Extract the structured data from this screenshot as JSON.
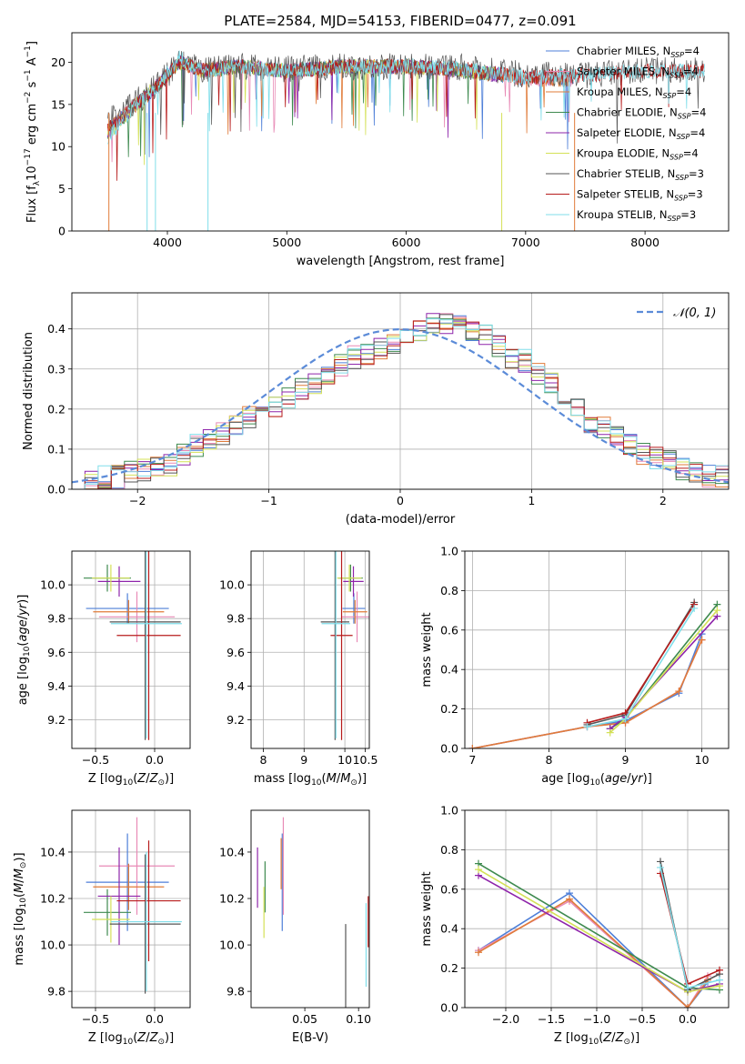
{
  "figure": {
    "title": "PLATE=2584, MJD=54153, FIBERID=0477, z=0.091"
  },
  "colors": {
    "Chabrier MILES": "#4e7fd8",
    "Salpeter MILES": "#e88ab6",
    "Kroupa MILES": "#e07b39",
    "Chabrier ELODIE": "#3e8a4f",
    "Salpeter ELODIE": "#8e24aa",
    "Kroupa ELODIE": "#d4e157",
    "Chabrier STELIB": "#555555",
    "Salpeter STELIB": "#b71c1c",
    "Kroupa STELIB": "#80deea",
    "gaussian": "#5b8bd8",
    "grid": "#b0b0b0"
  },
  "chart_data": [
    {
      "id": "spectrum",
      "type": "line",
      "title": "PLATE=2584, MJD=54153, FIBERID=0477, z=0.091",
      "xlabel": "wavelength [Angstrom, rest frame]",
      "ylabel": "Flux [f_λ10^−17 erg cm^−2 s^−1 A^−1]",
      "xlim": [
        3200,
        8700
      ],
      "ylim": [
        0,
        23.5
      ],
      "xticks": [
        4000,
        5000,
        6000,
        7000,
        8000
      ],
      "yticks": [
        0,
        5,
        10,
        15,
        20
      ],
      "grid": false,
      "legend": "top-right",
      "series": [
        {
          "name": "Chabrier MILES, N_SSP=4",
          "x": [
            3500,
            3700,
            3900,
            4100,
            4300,
            4600,
            5000,
            5500,
            6000,
            6500,
            7000,
            7400
          ],
          "y": [
            12,
            14.5,
            17,
            20,
            19,
            19.5,
            19,
            19.5,
            19.5,
            19,
            18,
            18
          ]
        },
        {
          "name": "Salpeter MILES, N_SSP=4",
          "x": [
            3500,
            3700,
            3900,
            4100,
            4300,
            4600,
            5000,
            5500,
            6000,
            6500,
            7000,
            7400
          ],
          "y": [
            12,
            14.6,
            17,
            20,
            19,
            19.5,
            19,
            19.5,
            19.5,
            19,
            18,
            18
          ]
        },
        {
          "name": "Kroupa MILES, N_SSP=4",
          "x": [
            3500,
            3700,
            3900,
            4100,
            4300,
            4600,
            5000,
            5500,
            6000,
            6500,
            7000,
            7400
          ],
          "y": [
            12,
            14.5,
            17,
            20,
            19,
            19.4,
            19,
            19.5,
            19.5,
            19,
            18,
            18
          ]
        },
        {
          "name": "Chabrier ELODIE, N_SSP=4",
          "x": [
            3500,
            3700,
            3900,
            4100,
            4300,
            4600,
            5000,
            5500,
            6000,
            6500,
            6800
          ],
          "y": [
            11.5,
            14.5,
            17,
            20,
            19,
            19.5,
            19,
            19.5,
            19.5,
            19,
            18.5
          ]
        },
        {
          "name": "Salpeter ELODIE, N_SSP=4",
          "x": [
            3500,
            3700,
            3900,
            4100,
            4300,
            4600,
            5000,
            5500,
            6000,
            6500,
            6800
          ],
          "y": [
            11.5,
            14.4,
            17,
            20,
            19,
            19.5,
            19,
            19.5,
            19.5,
            19,
            18.5
          ]
        },
        {
          "name": "Kroupa ELODIE, N_SSP=4",
          "x": [
            3500,
            3700,
            3900,
            4100,
            4300,
            4600,
            5000,
            5500,
            6000,
            6500,
            6800
          ],
          "y": [
            11.5,
            14.5,
            17,
            20,
            19,
            19.5,
            19,
            19.5,
            19.5,
            19,
            18.5
          ]
        },
        {
          "name": "Chabrier STELIB, N_SSP=3",
          "x": [
            3500,
            3700,
            3900,
            4100,
            4300,
            4600,
            5000,
            5500,
            6000,
            6500,
            7000,
            7500,
            8000,
            8500
          ],
          "y": [
            13,
            15,
            17,
            20,
            19,
            19.5,
            19.2,
            19.5,
            19.5,
            19.5,
            18.5,
            18.5,
            19,
            19
          ]
        },
        {
          "name": "Salpeter STELIB, N_SSP=3",
          "x": [
            3500,
            3700,
            3900,
            4100,
            4300,
            4600,
            5000,
            5500,
            6000,
            6500,
            7000,
            7500,
            8000,
            8500
          ],
          "y": [
            12,
            14.5,
            17,
            20,
            19,
            19.5,
            19,
            19.5,
            19.5,
            19.2,
            18.2,
            18.5,
            19,
            19
          ]
        },
        {
          "name": "Kroupa STELIB, N_SSP=3",
          "x": [
            3500,
            3700,
            3900,
            4100,
            4300,
            4600,
            5000,
            5500,
            6000,
            6500,
            7000,
            7500,
            8000,
            8500
          ],
          "y": [
            11,
            14.3,
            17,
            20.5,
            19,
            19.5,
            19,
            19.5,
            19.6,
            19.2,
            18.2,
            18.5,
            19,
            19
          ]
        }
      ]
    },
    {
      "id": "residuals",
      "type": "line",
      "xlabel": "(data-model)/error",
      "ylabel": "Normed distribution",
      "xlim": [
        -2.5,
        2.5
      ],
      "ylim": [
        0,
        0.49
      ],
      "xticks": [
        -2,
        -1,
        0,
        1,
        2
      ],
      "yticks": [
        0.0,
        0.1,
        0.2,
        0.3,
        0.4
      ],
      "grid": true,
      "legend": "top-right",
      "legend_label": "N(0,1)",
      "gaussian": {
        "mean": 0,
        "sigma": 1
      },
      "bin_width": 0.1,
      "hist_x_start": -2.5,
      "hist": [
        0.02,
        0.02,
        0.03,
        0.03,
        0.04,
        0.05,
        0.05,
        0.06,
        0.09,
        0.11,
        0.12,
        0.14,
        0.16,
        0.18,
        0.2,
        0.21,
        0.23,
        0.25,
        0.26,
        0.29,
        0.31,
        0.33,
        0.34,
        0.35,
        0.36,
        0.38,
        0.4,
        0.41,
        0.41,
        0.42,
        0.4,
        0.38,
        0.36,
        0.33,
        0.32,
        0.29,
        0.26,
        0.23,
        0.2,
        0.17,
        0.15,
        0.13,
        0.11,
        0.09,
        0.08,
        0.07,
        0.05,
        0.04,
        0.03,
        0.03
      ]
    },
    {
      "id": "age_vs_Z",
      "type": "scatter",
      "xlabel": "Z [log10(Z/Z⊙)]",
      "ylabel": "age [log10(age/yr)]",
      "xlim": [
        -0.7,
        0.3
      ],
      "ylim": [
        9.03,
        10.2
      ],
      "xticks": [
        -0.5,
        0.0
      ],
      "yticks": [
        9.2,
        9.4,
        9.6,
        9.8,
        10.0
      ],
      "grid": true,
      "points": [
        {
          "series": "Chabrier MILES",
          "x": -0.23,
          "xerr": 0.35,
          "y": 9.86,
          "yerr": 0.09
        },
        {
          "series": "Salpeter MILES",
          "x": -0.15,
          "xerr": 0.32,
          "y": 9.81,
          "yerr": 0.15
        },
        {
          "series": "Kroupa MILES",
          "x": -0.22,
          "xerr": 0.3,
          "y": 9.84,
          "yerr": 0.07
        },
        {
          "series": "Chabrier ELODIE",
          "x": -0.4,
          "xerr": 0.2,
          "y": 10.04,
          "yerr": 0.08
        },
        {
          "series": "Salpeter ELODIE",
          "x": -0.3,
          "xerr": 0.18,
          "y": 10.02,
          "yerr": 0.09
        },
        {
          "series": "Kroupa ELODIE",
          "x": -0.37,
          "xerr": 0.16,
          "y": 10.04,
          "yerr": 0.08
        },
        {
          "series": "Chabrier STELIB",
          "x": -0.08,
          "xerr": 0.3,
          "y": 9.78,
          "yerr": 0.7
        },
        {
          "series": "Salpeter STELIB",
          "x": -0.05,
          "xerr": 0.27,
          "y": 9.7,
          "yerr": 0.62
        },
        {
          "series": "Kroupa STELIB",
          "x": -0.07,
          "xerr": 0.3,
          "y": 9.77,
          "yerr": 0.68
        }
      ]
    },
    {
      "id": "age_vs_mass",
      "type": "scatter",
      "xlabel": "mass [log10(M/M⊙)]",
      "ylabel": "",
      "xlim": [
        7.7,
        10.6
      ],
      "ylim": [
        9.03,
        10.2
      ],
      "xticks": [
        8,
        9,
        10,
        10.5
      ],
      "yticks": [
        9.2,
        9.4,
        9.6,
        9.8,
        10.0
      ],
      "tick_labels_x": [
        "8",
        "9",
        "10",
        "10.5"
      ],
      "grid": true,
      "points": [
        {
          "series": "Chabrier MILES",
          "x": 10.22,
          "xerr": 0.28,
          "y": 9.86,
          "yerr": 0.09
        },
        {
          "series": "Salpeter MILES",
          "x": 10.3,
          "xerr": 0.38,
          "y": 9.81,
          "yerr": 0.15
        },
        {
          "series": "Kroupa MILES",
          "x": 10.25,
          "xerr": 0.3,
          "y": 9.84,
          "yerr": 0.07
        },
        {
          "series": "Chabrier ELODIE",
          "x": 10.14,
          "xerr": 0.3,
          "y": 10.04,
          "yerr": 0.08
        },
        {
          "series": "Salpeter ELODIE",
          "x": 10.21,
          "xerr": 0.25,
          "y": 10.02,
          "yerr": 0.09
        },
        {
          "series": "Kroupa ELODIE",
          "x": 10.11,
          "xerr": 0.3,
          "y": 10.04,
          "yerr": 0.08
        },
        {
          "series": "Chabrier STELIB",
          "x": 9.76,
          "xerr": 0.35,
          "y": 9.78,
          "yerr": 0.7
        },
        {
          "series": "Salpeter STELIB",
          "x": 9.92,
          "xerr": 0.27,
          "y": 9.7,
          "yerr": 0.62
        },
        {
          "series": "Kroupa STELIB",
          "x": 9.78,
          "xerr": 0.35,
          "y": 9.77,
          "yerr": 0.68
        }
      ]
    },
    {
      "id": "weight_vs_age",
      "type": "line",
      "xlabel": "age [log10(age/yr)]",
      "ylabel": "mass weight",
      "xlim": [
        6.9,
        10.35
      ],
      "ylim": [
        0,
        1.0
      ],
      "xticks": [
        7,
        8,
        9,
        10
      ],
      "yticks": [
        0.0,
        0.2,
        0.4,
        0.6,
        0.8,
        1.0
      ],
      "grid": true,
      "series": [
        {
          "name": "Chabrier MILES",
          "x": [
            7.0,
            8.5,
            9.0,
            9.7,
            10.0
          ],
          "y": [
            0.0,
            0.11,
            0.14,
            0.28,
            0.58
          ]
        },
        {
          "name": "Salpeter MILES",
          "x": [
            7.0,
            8.5,
            9.0,
            9.7,
            10.0
          ],
          "y": [
            0.0,
            0.11,
            0.13,
            0.29,
            0.55
          ]
        },
        {
          "name": "Kroupa MILES",
          "x": [
            7.0,
            8.5,
            9.0,
            9.7,
            10.0
          ],
          "y": [
            0.0,
            0.11,
            0.13,
            0.29,
            0.55
          ]
        },
        {
          "name": "Chabrier ELODIE",
          "x": [
            8.8,
            9.0,
            10.2
          ],
          "y": [
            0.1,
            0.15,
            0.73
          ]
        },
        {
          "name": "Salpeter ELODIE",
          "x": [
            8.8,
            9.0,
            10.2
          ],
          "y": [
            0.1,
            0.16,
            0.67
          ]
        },
        {
          "name": "Kroupa ELODIE",
          "x": [
            8.8,
            9.0,
            10.2
          ],
          "y": [
            0.08,
            0.15,
            0.7
          ]
        },
        {
          "name": "Chabrier STELIB",
          "x": [
            8.5,
            9.0,
            9.9
          ],
          "y": [
            0.12,
            0.17,
            0.74
          ]
        },
        {
          "name": "Salpeter STELIB",
          "x": [
            8.5,
            9.0,
            9.9
          ],
          "y": [
            0.13,
            0.18,
            0.73
          ]
        },
        {
          "name": "Kroupa STELIB",
          "x": [
            8.5,
            9.0,
            9.9
          ],
          "y": [
            0.11,
            0.15,
            0.71
          ]
        }
      ]
    },
    {
      "id": "mass_vs_Z",
      "type": "scatter",
      "xlabel": "Z [log10(Z/Z⊙)]",
      "ylabel": "mass [log10(M/M⊙)]",
      "xlim": [
        -0.7,
        0.3
      ],
      "ylim": [
        9.73,
        10.58
      ],
      "xticks": [
        -0.5,
        0.0
      ],
      "yticks": [
        9.8,
        10.0,
        10.2,
        10.4
      ],
      "grid": true,
      "points": [
        {
          "series": "Chabrier MILES",
          "x": -0.23,
          "xerr": 0.35,
          "y": 10.27,
          "yerr": 0.21
        },
        {
          "series": "Salpeter MILES",
          "x": -0.15,
          "xerr": 0.32,
          "y": 10.34,
          "yerr": 0.21
        },
        {
          "series": "Kroupa MILES",
          "x": -0.22,
          "xerr": 0.3,
          "y": 10.25,
          "yerr": 0.1
        },
        {
          "series": "Chabrier ELODIE",
          "x": -0.4,
          "xerr": 0.2,
          "y": 10.14,
          "yerr": 0.1
        },
        {
          "series": "Salpeter ELODIE",
          "x": -0.3,
          "xerr": 0.18,
          "y": 10.21,
          "yerr": 0.21
        },
        {
          "series": "Kroupa ELODIE",
          "x": -0.37,
          "xerr": 0.16,
          "y": 10.11,
          "yerr": 0.1
        },
        {
          "series": "Chabrier STELIB",
          "x": -0.08,
          "xerr": 0.3,
          "y": 10.09,
          "yerr": 0.3
        },
        {
          "series": "Salpeter STELIB",
          "x": -0.05,
          "xerr": 0.27,
          "y": 10.19,
          "yerr": 0.26
        },
        {
          "series": "Kroupa STELIB",
          "x": -0.07,
          "xerr": 0.3,
          "y": 10.1,
          "yerr": 0.3
        }
      ]
    },
    {
      "id": "mass_vs_ebv",
      "type": "scatter",
      "xlabel": "E(B-V)",
      "ylabel": "",
      "xlim": [
        0.0,
        0.11
      ],
      "ylim": [
        9.73,
        10.58
      ],
      "xticks": [
        0.05,
        0.1
      ],
      "yticks": [
        9.8,
        10.0,
        10.2,
        10.4
      ],
      "tick_labels_x": [
        "0.05",
        "0.10"
      ],
      "grid": false,
      "points": [
        {
          "series": "Chabrier MILES",
          "x": 0.029,
          "y": 10.27,
          "yerr": 0.21
        },
        {
          "series": "Salpeter MILES",
          "x": 0.03,
          "y": 10.34,
          "yerr": 0.21
        },
        {
          "series": "Kroupa MILES",
          "x": 0.028,
          "y": 10.35,
          "yerr": 0.11
        },
        {
          "series": "Chabrier ELODIE",
          "x": 0.013,
          "y": 10.25,
          "yerr": 0.11
        },
        {
          "series": "Salpeter ELODIE",
          "x": 0.006,
          "y": 10.29,
          "yerr": 0.13
        },
        {
          "series": "Kroupa ELODIE",
          "x": 0.012,
          "y": 10.14,
          "yerr": 0.11
        },
        {
          "series": "Chabrier STELIB",
          "x": 0.088,
          "y": 9.88,
          "yerr": 0.21
        },
        {
          "series": "Salpeter STELIB",
          "x": 0.109,
          "y": 10.1,
          "yerr": 0.11
        },
        {
          "series": "Kroupa STELIB",
          "x": 0.107,
          "y": 10.0,
          "yerr": 0.18
        }
      ]
    },
    {
      "id": "weight_vs_Z",
      "type": "line",
      "xlabel": "Z [log10(Z/Z⊙)]",
      "ylabel": "mass weight",
      "xlim": [
        -2.45,
        0.45
      ],
      "ylim": [
        0,
        1.0
      ],
      "xticks": [
        -2.0,
        -1.5,
        -1.0,
        -0.5,
        0.0
      ],
      "yticks": [
        0.0,
        0.2,
        0.4,
        0.6,
        0.8,
        1.0
      ],
      "grid": true,
      "series": [
        {
          "name": "Chabrier MILES",
          "x": [
            -2.3,
            -1.3,
            0.0,
            0.22
          ],
          "y": [
            0.29,
            0.58,
            0.0,
            0.13
          ]
        },
        {
          "name": "Salpeter MILES",
          "x": [
            -2.3,
            -1.3,
            0.0,
            0.22
          ],
          "y": [
            0.29,
            0.54,
            0.0,
            0.16
          ]
        },
        {
          "name": "Kroupa MILES",
          "x": [
            -2.3,
            -1.3,
            0.0,
            0.22
          ],
          "y": [
            0.28,
            0.55,
            0.0,
            0.14
          ]
        },
        {
          "name": "Chabrier ELODIE",
          "x": [
            -2.3,
            0.0,
            0.35
          ],
          "y": [
            0.73,
            0.1,
            0.09
          ]
        },
        {
          "name": "Salpeter ELODIE",
          "x": [
            -2.3,
            0.0,
            0.35
          ],
          "y": [
            0.67,
            0.08,
            0.12
          ]
        },
        {
          "name": "Kroupa ELODIE",
          "x": [
            -2.3,
            0.0,
            0.35
          ],
          "y": [
            0.7,
            0.08,
            0.11
          ]
        },
        {
          "name": "Chabrier STELIB",
          "x": [
            -0.3,
            0.0,
            0.35
          ],
          "y": [
            0.74,
            0.09,
            0.17
          ]
        },
        {
          "name": "Salpeter STELIB",
          "x": [
            -0.3,
            0.0,
            0.35
          ],
          "y": [
            0.68,
            0.12,
            0.19
          ]
        },
        {
          "name": "Kroupa STELIB",
          "x": [
            -0.3,
            0.0,
            0.35
          ],
          "y": [
            0.71,
            0.1,
            0.14
          ]
        }
      ]
    }
  ]
}
